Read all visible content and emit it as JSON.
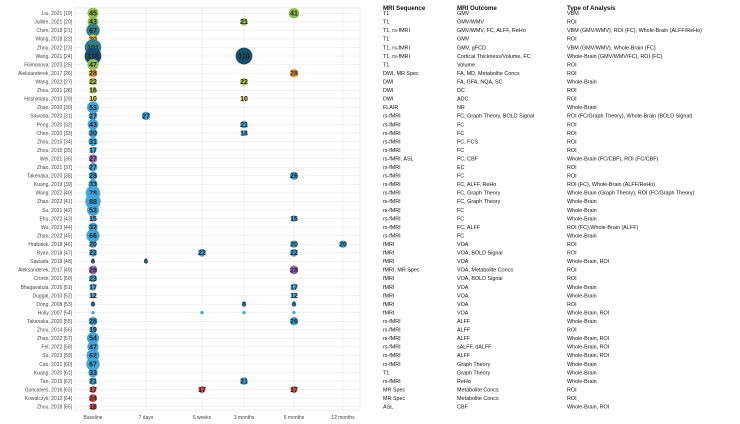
{
  "colors": {
    "teal": "#2f7f86",
    "navy": "#174c6b",
    "green": "#8fc04d",
    "lime": "#b9d03f",
    "yellow": "#e0d44a",
    "orange": "#f2a93b",
    "blue": "#3fa6dc",
    "purple": "#9b6bc4",
    "red": "#d94a48",
    "grid": "#e6e6e6"
  },
  "chart_data": {
    "type": "scatter",
    "categories": [
      "Baseline",
      "7 days",
      "6 weeks",
      "3 months",
      "6 months",
      "12 months"
    ],
    "table_headers": [
      "MRI Sequence",
      "MRI Outcome",
      "Type of Analysis"
    ],
    "rows": [
      {
        "study": "Liu, 2021 [19]",
        "seq": "T1",
        "outcome": "GMV",
        "analysis": "VBM",
        "points": [
          {
            "t": "Baseline",
            "n": 45,
            "c": "green"
          },
          {
            "t": "6 months",
            "n": 41,
            "c": "green"
          }
        ]
      },
      {
        "study": "Jullien, 2021 [20]",
        "seq": "T1",
        "outcome": "GMV/WMV",
        "analysis": "ROI",
        "points": [
          {
            "t": "Baseline",
            "n": 43,
            "c": "green"
          },
          {
            "t": "3 months",
            "n": 21,
            "c": "green"
          }
        ]
      },
      {
        "study": "Chen, 2018 [21]",
        "seq": "T1, rs-fMRI",
        "outcome": "GMV/WMV, FC, ALFF, ReHo",
        "analysis": "VBM (GMV/WMV), ROI (FC), Whole-Brain (ALFF/ReHo)",
        "points": [
          {
            "t": "Baseline",
            "n": 67,
            "c": "teal"
          }
        ]
      },
      {
        "study": "Wang, 2018 [22]",
        "seq": "T1",
        "outcome": "GMV",
        "analysis": "ROI",
        "points": [
          {
            "t": "Baseline",
            "n": 30,
            "c": "yellow"
          }
        ]
      },
      {
        "study": "Zhou, 2022 [23]",
        "seq": "T1, rs-fMRI",
        "outcome": "GMV, gFCD",
        "analysis": "VBM (GMV/WMV), Whole-Brain (FC)",
        "points": [
          {
            "t": "Baseline",
            "n": 101,
            "c": "teal"
          }
        ]
      },
      {
        "study": "Wang, 2021 [24]",
        "seq": "T1, rs-fMRI",
        "outcome": "Cortical Thickness/Volume, FC",
        "analysis": "Whole-Brain (GMV/WMV/FC), ROI (FC)",
        "points": [
          {
            "t": "Baseline",
            "n": 118,
            "c": "navy"
          },
          {
            "t": "3 months",
            "n": 110,
            "c": "navy"
          }
        ]
      },
      {
        "study": "Filimonova, 2023 [25]",
        "seq": "T1",
        "outcome": "Volume",
        "analysis": "ROI",
        "points": [
          {
            "t": "Baseline",
            "n": 47,
            "c": "green"
          }
        ]
      },
      {
        "study": "Aleksanderek, 2017 [26]",
        "seq": "DWI, MR Spec",
        "outcome": "FA, MD, Metabolite Concs",
        "analysis": "ROI",
        "points": [
          {
            "t": "Baseline",
            "n": 28,
            "c": "orange"
          },
          {
            "t": "6 months",
            "n": 28,
            "c": "orange"
          }
        ]
      },
      {
        "study": "Wang, 2022 [27]",
        "seq": "DWI",
        "outcome": "FA, GFA, NQA, SC",
        "analysis": "Whole-Brain",
        "points": [
          {
            "t": "Baseline",
            "n": 22,
            "c": "lime"
          },
          {
            "t": "3 months",
            "n": 22,
            "c": "lime"
          }
        ]
      },
      {
        "study": "Zhou, 2021 [28]",
        "seq": "DWI",
        "outcome": "DC",
        "analysis": "ROI",
        "points": [
          {
            "t": "Baseline",
            "n": 16,
            "c": "lime"
          }
        ]
      },
      {
        "study": "Hoshimaru, 2010 [29]",
        "seq": "DWI",
        "outcome": "ADC",
        "analysis": "ROI",
        "points": [
          {
            "t": "Baseline",
            "n": 10,
            "c": "yellow"
          },
          {
            "t": "3 months",
            "n": 10,
            "c": "yellow"
          }
        ]
      },
      {
        "study": "Zhao, 2020 [30]",
        "seq": "FLAIR",
        "outcome": "NR",
        "analysis": "Whole-Brain",
        "points": [
          {
            "t": "Baseline",
            "n": 53,
            "c": "blue"
          }
        ]
      },
      {
        "study": "Sawada, 2020 [31]",
        "seq": "rs-fMRI",
        "outcome": "FC, Graph Theory, BOLD Signal",
        "analysis": "ROI (FC/Graph Theory), Whole-Brain (BOLD Signal)",
        "points": [
          {
            "t": "Baseline",
            "n": 27,
            "c": "blue"
          },
          {
            "t": "7 days",
            "n": 27,
            "c": "blue"
          }
        ]
      },
      {
        "study": "Peng, 2020 [32]",
        "seq": "rs-fMRI",
        "outcome": "FC",
        "analysis": "ROI",
        "points": [
          {
            "t": "Baseline",
            "n": 43,
            "c": "blue"
          },
          {
            "t": "3 months",
            "n": 21,
            "c": "blue"
          }
        ]
      },
      {
        "study": "Chen, 2020 [33]",
        "seq": "rs-fMRI",
        "outcome": "FC",
        "analysis": "ROI",
        "points": [
          {
            "t": "Baseline",
            "n": 30,
            "c": "blue"
          },
          {
            "t": "3 months",
            "n": 14,
            "c": "blue"
          }
        ]
      },
      {
        "study": "Zhou, 2015 [34]",
        "seq": "rs-fMRI",
        "outcome": "FC, FCS",
        "analysis": "ROI",
        "points": [
          {
            "t": "Baseline",
            "n": 31,
            "c": "blue"
          }
        ]
      },
      {
        "study": "Zhou, 2015 [35]",
        "seq": "rs-fMRI",
        "outcome": "FC",
        "analysis": "ROI",
        "points": [
          {
            "t": "Baseline",
            "n": 17,
            "c": "blue"
          }
        ]
      },
      {
        "study": "Wei, 2021 [36]",
        "seq": "rs-fMRI, ASL",
        "outcome": "FC, CBF",
        "analysis": "Whole-Brain (FC/CBF), ROI (FC/CBF)",
        "points": [
          {
            "t": "Baseline",
            "n": 27,
            "c": "purple"
          }
        ]
      },
      {
        "study": "Zhao, 2021 [37]",
        "seq": "rs-fMRI",
        "outcome": "EC",
        "analysis": "ROI",
        "points": [
          {
            "t": "Baseline",
            "n": 27,
            "c": "blue"
          }
        ]
      },
      {
        "study": "Takenaka, 2020 [38]",
        "seq": "rs-fMRI",
        "outcome": "FC",
        "analysis": "ROI",
        "points": [
          {
            "t": "Baseline",
            "n": 28,
            "c": "blue"
          },
          {
            "t": "6 months",
            "n": 26,
            "c": "blue"
          }
        ]
      },
      {
        "study": "Kuang, 2019 [39]",
        "seq": "rs-fMRI",
        "outcome": "FC, ALFF, ReHo",
        "analysis": "ROI (FC), Whole-Brain (ALFF/ReHo)",
        "points": [
          {
            "t": "Baseline",
            "n": 33,
            "c": "blue"
          }
        ]
      },
      {
        "study": "Wang, 2022 [40]",
        "seq": "rs-fMRI",
        "outcome": "FC, Graph Theory",
        "analysis": "Whole-Brain (Graph Theory), ROI (FC/Graph Theory)",
        "points": [
          {
            "t": "Baseline",
            "n": 78,
            "c": "blue"
          }
        ]
      },
      {
        "study": "Zhao, 2022 [41]",
        "seq": "rs-fMRI",
        "outcome": "FC, Graph Theory",
        "analysis": "Whole-Brain",
        "points": [
          {
            "t": "Baseline",
            "n": 88,
            "c": "blue"
          }
        ]
      },
      {
        "study": "Su, 2021 [42]",
        "seq": "rs-fMRI",
        "outcome": "FC",
        "analysis": "Whole-Brain",
        "points": [
          {
            "t": "Baseline",
            "n": 53,
            "c": "blue"
          }
        ]
      },
      {
        "study": "Ehu, 2022 [43]",
        "seq": "rs-fMRI",
        "outcome": "FC",
        "analysis": "Whole-Brain",
        "points": [
          {
            "t": "Baseline",
            "n": 15,
            "c": "blue"
          },
          {
            "t": "6 months",
            "n": 15,
            "c": "blue"
          }
        ]
      },
      {
        "study": "Wu, 2023 [44]",
        "seq": "rs-fMRI",
        "outcome": "FC, ALFF",
        "analysis": "ROI (FC),Whole-Brain (ALFF)",
        "points": [
          {
            "t": "Baseline",
            "n": 32,
            "c": "blue"
          }
        ]
      },
      {
        "study": "Zhan, 2022 [45]",
        "seq": "rs-fMRI",
        "outcome": "FC",
        "analysis": "Whole-Brain",
        "points": [
          {
            "t": "Baseline",
            "n": 66,
            "c": "blue"
          }
        ]
      },
      {
        "study": "Hrabalek, 2018 [46]",
        "seq": "fMRI",
        "outcome": "VOA",
        "analysis": "ROI",
        "points": [
          {
            "t": "Baseline",
            "n": 20,
            "c": "blue"
          },
          {
            "t": "6 months",
            "n": 20,
            "c": "blue"
          },
          {
            "t": "12 months",
            "n": 20,
            "c": "blue"
          }
        ]
      },
      {
        "study": "Ryan, 2018 [47]",
        "seq": "fMRI",
        "outcome": "VOA, BOLD Signal",
        "analysis": "ROI",
        "points": [
          {
            "t": "Baseline",
            "n": 22,
            "c": "blue"
          },
          {
            "t": "6 weeks",
            "n": 22,
            "c": "blue"
          },
          {
            "t": "6 months",
            "n": 22,
            "c": "blue"
          }
        ]
      },
      {
        "study": "Sawada, 2018 [48]",
        "seq": "fMRI",
        "outcome": "VOA",
        "analysis": "Whole-Brain, ROI",
        "points": [
          {
            "t": "Baseline",
            "n": 6,
            "c": "blue"
          },
          {
            "t": "7 days",
            "n": 6,
            "c": "blue"
          }
        ]
      },
      {
        "study": "Aleksanderek, 2017 [49]",
        "seq": "fMRI, MR Spec",
        "outcome": "VOA, Metabolite Concs",
        "analysis": "ROI",
        "points": [
          {
            "t": "Baseline",
            "n": 28,
            "c": "purple"
          },
          {
            "t": "6 months",
            "n": 28,
            "c": "purple"
          }
        ]
      },
      {
        "study": "Cronin, 2021 [50]",
        "seq": "fMRI",
        "outcome": "VOA, BOLD Signal",
        "analysis": "ROI",
        "points": [
          {
            "t": "Baseline",
            "n": 23,
            "c": "blue"
          }
        ]
      },
      {
        "study": "Bhagavatula, 2016 [51]",
        "seq": "fMRI",
        "outcome": "VOA",
        "analysis": "Whole-Brain",
        "points": [
          {
            "t": "Baseline",
            "n": 17,
            "c": "blue"
          },
          {
            "t": "6 months",
            "n": 17,
            "c": "blue"
          }
        ]
      },
      {
        "study": "Duggal, 2010 [52]",
        "seq": "fMRI",
        "outcome": "VOA",
        "analysis": "Whole-Brain",
        "points": [
          {
            "t": "Baseline",
            "n": 12,
            "c": "blue"
          },
          {
            "t": "6 months",
            "n": 12,
            "c": "blue"
          }
        ]
      },
      {
        "study": "Dong, 2008 [53]",
        "seq": "fMRI",
        "outcome": "VOA",
        "analysis": "ROI",
        "points": [
          {
            "t": "Baseline",
            "n": 8,
            "c": "blue"
          },
          {
            "t": "3 months",
            "n": 8,
            "c": "blue"
          },
          {
            "t": "6 months",
            "n": 8,
            "c": "blue"
          }
        ]
      },
      {
        "study": "Holly, 2007 [54]",
        "seq": "fMRI",
        "outcome": "VOA",
        "analysis": "Whole-Brain, ROI",
        "points": [
          {
            "t": "Baseline",
            "n": 4,
            "c": "blue"
          },
          {
            "t": "6 weeks",
            "n": 4,
            "c": "blue"
          },
          {
            "t": "3 months",
            "n": 4,
            "c": "blue"
          },
          {
            "t": "6 months",
            "n": 4,
            "c": "blue"
          }
        ]
      },
      {
        "study": "Takenaka, 2020 [55]",
        "seq": "rs-fMRI",
        "outcome": "ALFF",
        "analysis": "Whole-Brain",
        "points": [
          {
            "t": "Baseline",
            "n": 28,
            "c": "blue"
          },
          {
            "t": "6 months",
            "n": 26,
            "c": "blue"
          }
        ]
      },
      {
        "study": "Zhou, 2014 [56]",
        "seq": "rs-fMRI",
        "outcome": "ALFF",
        "analysis": "ROI",
        "points": [
          {
            "t": "Baseline",
            "n": 19,
            "c": "blue"
          }
        ]
      },
      {
        "study": "Zhao, 2022 [57]",
        "seq": "rs-fMRI",
        "outcome": "ALFF",
        "analysis": "Whole-Brain, ROI",
        "points": [
          {
            "t": "Baseline",
            "n": 54,
            "c": "blue"
          }
        ]
      },
      {
        "study": "Fei, 2022 [58]",
        "seq": "rs-fMRI",
        "outcome": "sALFF, dALFF",
        "analysis": "Whole-Brain, ROI",
        "points": [
          {
            "t": "Baseline",
            "n": 47,
            "c": "blue"
          }
        ]
      },
      {
        "study": "Su, 2023 [59]",
        "seq": "rs-fMRI",
        "outcome": "ALFF",
        "analysis": "Whole-Brain, ROI",
        "points": [
          {
            "t": "Baseline",
            "n": 62,
            "c": "blue"
          }
        ]
      },
      {
        "study": "Cao, 2021 [60]",
        "seq": "rs-fMRI",
        "outcome": "Graph Theory",
        "analysis": "Whole-Brain",
        "points": [
          {
            "t": "Baseline",
            "n": 67,
            "c": "blue"
          }
        ]
      },
      {
        "study": "Kuang, 2020 [61]",
        "seq": "T1",
        "outcome": "Graph Theory",
        "analysis": "Whole-Brain",
        "points": [
          {
            "t": "Baseline",
            "n": 33,
            "c": "blue"
          }
        ]
      },
      {
        "study": "Tan, 2015 [62]",
        "seq": "rs-fMRI",
        "outcome": "ReHo",
        "analysis": "Whole-Brain",
        "points": [
          {
            "t": "Baseline",
            "n": 21,
            "c": "blue"
          },
          {
            "t": "3 months",
            "n": 21,
            "c": "blue"
          }
        ]
      },
      {
        "study": "Goncalves, 2016 [63]",
        "seq": "MR Spec",
        "outcome": "Metabolite Concs",
        "analysis": "ROI",
        "points": [
          {
            "t": "Baseline",
            "n": 17,
            "c": "red"
          },
          {
            "t": "6 weeks",
            "n": 17,
            "c": "red"
          },
          {
            "t": "6 months",
            "n": 17,
            "c": "red"
          }
        ]
      },
      {
        "study": "Kowalczyk, 2012 [64]",
        "seq": "MR Spec",
        "outcome": "Metabolite Concs",
        "analysis": "ROI",
        "points": [
          {
            "t": "Baseline",
            "n": 24,
            "c": "red"
          }
        ]
      },
      {
        "study": "Zhou, 2018 [65]",
        "seq": "ASL",
        "outcome": "CBF",
        "analysis": "Whole-Brain, ROI",
        "points": [
          {
            "t": "Baseline",
            "n": 18,
            "c": "red"
          }
        ]
      }
    ]
  }
}
